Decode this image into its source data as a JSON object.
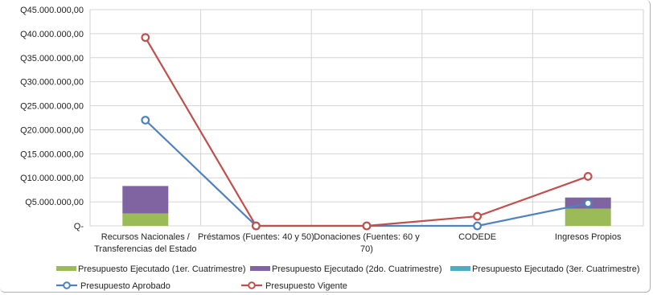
{
  "chart_data": {
    "type": "bar",
    "title": "",
    "xlabel": "",
    "ylabel": "",
    "ylim": [
      0,
      45000000
    ],
    "y_tick_values": [
      0,
      5000000,
      10000000,
      15000000,
      20000000,
      25000000,
      30000000,
      35000000,
      40000000,
      45000000
    ],
    "y_tick_labels": [
      "Q-",
      "Q5.000.000,00",
      "Q10.000.000,00",
      "Q15.000.000,00",
      "Q20.000.000,00",
      "Q25.000.000,00",
      "Q30.000.000,00",
      "Q35.000.000,00",
      "Q40.000.000,00",
      "Q45.000.000,00"
    ],
    "grid": true,
    "legend_position": "bottom",
    "categories": [
      [
        "Recursos Nacionales /",
        "Transferencias del Estado"
      ],
      [
        "Préstamos (Fuentes: 40 y 50)"
      ],
      [
        "Donaciones  (Fuentes: 60 y",
        "70)"
      ],
      [
        "CODEDE"
      ],
      [
        "Ingresos Propios"
      ]
    ],
    "bar_series": [
      {
        "name": "Presupuesto Ejecutado (1er. Cuatrimestre)",
        "color": "#9bbb59",
        "values": [
          2600000,
          0,
          0,
          0,
          3600000
        ]
      },
      {
        "name": "Presupuesto Ejecutado (2do. Cuatrimestre)",
        "color": "#8064a2",
        "values": [
          5700000,
          0,
          0,
          0,
          2300000
        ]
      },
      {
        "name": "Presupuesto Ejecutado (3er. Cuatrimestre)",
        "color": "#4bacc6",
        "values": [
          0,
          0,
          0,
          0,
          0
        ]
      }
    ],
    "line_series": [
      {
        "name": "Presupuesto Aprobado",
        "color": "#4f81bd",
        "values": [
          22000000,
          0,
          0,
          0,
          4700000
        ]
      },
      {
        "name": "Presupuesto Vigente",
        "color": "#c0504d",
        "values": [
          39200000,
          0,
          0,
          2000000,
          10300000
        ]
      }
    ]
  }
}
